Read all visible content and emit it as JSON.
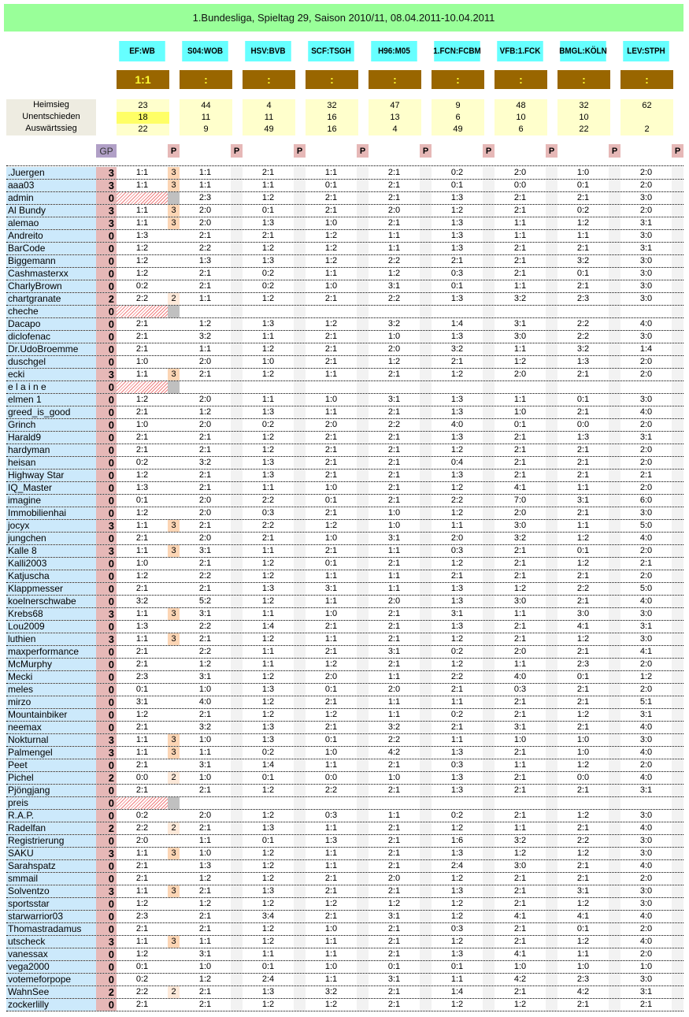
{
  "title": "1.Bundesliga, Spieltag 29, Saison 2010/11, 08.04.2011-10.04.2011",
  "matches": [
    "EF:WB",
    "S04:WOB",
    "HSV:BVB",
    "SCF:TSGH",
    "H96:M05",
    "1.FCN:FCBM",
    "VFB:1.FCK",
    "BMGL:KÖLN",
    "LEV:STPH"
  ],
  "results": [
    "1:1",
    ":",
    ":",
    ":",
    ":",
    ":",
    ":",
    ":",
    ":"
  ],
  "stats": {
    "labels": [
      "Heimsieg",
      "Unentschieden",
      "Auswärtssieg"
    ],
    "heimsieg": [
      "23",
      "44",
      "4",
      "32",
      "47",
      "9",
      "48",
      "32",
      "62"
    ],
    "unentschieden": [
      "18",
      "11",
      "11",
      "16",
      "13",
      "6",
      "10",
      "10",
      ""
    ],
    "auswaertssieg": [
      "22",
      "9",
      "49",
      "16",
      "4",
      "49",
      "6",
      "22",
      "2"
    ]
  },
  "gp_label": "GP",
  "p_label": "P",
  "colors": {
    "title": "#99ff99",
    "match": "#66ffff",
    "score": "#996600",
    "score_text": "#ffff33",
    "stat": "#ffffcc",
    "highlight": "#ffff66",
    "name": "#cce9fb",
    "gp": "#e6b8b7",
    "p3": "#fcd5b4",
    "p2": "#fde9d9"
  },
  "rows": [
    {
      "name": ".Juergen",
      "gp": "3",
      "p": "3",
      "tips": [
        "1:1",
        "1:1",
        "2:1",
        "1:1",
        "2:1",
        "0:2",
        "2:0",
        "1:0",
        "2:0"
      ]
    },
    {
      "name": "aaa03",
      "gp": "3",
      "p": "3",
      "tips": [
        "1:1",
        "1:1",
        "1:1",
        "0:1",
        "2:1",
        "0:1",
        "0:0",
        "0:1",
        "2:0"
      ]
    },
    {
      "name": "admin",
      "gp": "0",
      "p": "",
      "missing": true,
      "tips": [
        "",
        "2:3",
        "1:2",
        "2:1",
        "2:1",
        "1:3",
        "2:1",
        "2:1",
        "3:0"
      ]
    },
    {
      "name": "Al Bundy",
      "gp": "3",
      "p": "3",
      "tips": [
        "1:1",
        "2:0",
        "0:1",
        "2:1",
        "2:0",
        "1:2",
        "2:1",
        "0:2",
        "2:0"
      ]
    },
    {
      "name": "alemao",
      "gp": "3",
      "p": "3",
      "tips": [
        "1:1",
        "2:0",
        "1:3",
        "1:0",
        "2:1",
        "1:3",
        "1:1",
        "1:2",
        "3:1"
      ]
    },
    {
      "name": "Andreito",
      "gp": "0",
      "p": "",
      "tips": [
        "1:3",
        "2:1",
        "2:1",
        "1:2",
        "1:1",
        "1:3",
        "1:1",
        "1:1",
        "3:0"
      ]
    },
    {
      "name": "BarCode",
      "gp": "0",
      "p": "",
      "tips": [
        "1:2",
        "2:2",
        "1:2",
        "1:2",
        "1:1",
        "1:3",
        "2:1",
        "2:1",
        "3:1"
      ]
    },
    {
      "name": "Biggemann",
      "gp": "0",
      "p": "",
      "tips": [
        "1:2",
        "1:3",
        "1:3",
        "1:2",
        "2:2",
        "2:1",
        "2:1",
        "3:2",
        "3:0"
      ]
    },
    {
      "name": "Cashmasterxx",
      "gp": "0",
      "p": "",
      "tips": [
        "1:2",
        "2:1",
        "0:2",
        "1:1",
        "1:2",
        "0:3",
        "2:1",
        "0:1",
        "3:0"
      ]
    },
    {
      "name": "CharlyBrown",
      "gp": "0",
      "p": "",
      "tips": [
        "0:2",
        "2:1",
        "0:2",
        "1:0",
        "3:1",
        "0:1",
        "1:1",
        "2:1",
        "3:0"
      ]
    },
    {
      "name": "chartgranate",
      "gp": "2",
      "p": "2",
      "tips": [
        "2:2",
        "1:1",
        "1:2",
        "2:1",
        "2:2",
        "1:3",
        "3:2",
        "2:3",
        "3:0"
      ]
    },
    {
      "name": "cheche",
      "gp": "0",
      "p": "",
      "missing": true,
      "tips": [
        "",
        "",
        "",
        "",
        "",
        "",
        "",
        "",
        ""
      ]
    },
    {
      "name": "Dacapo",
      "gp": "0",
      "p": "",
      "tips": [
        "2:1",
        "1:2",
        "1:3",
        "1:2",
        "3:2",
        "1:4",
        "3:1",
        "2:2",
        "4:0"
      ]
    },
    {
      "name": "diclofenac",
      "gp": "0",
      "p": "",
      "tips": [
        "2:1",
        "3:2",
        "1:1",
        "2:1",
        "1:0",
        "1:3",
        "3:0",
        "2:2",
        "3:0"
      ]
    },
    {
      "name": "Dr.UdoBroemme",
      "gp": "0",
      "p": "",
      "tips": [
        "2:1",
        "1:1",
        "1:2",
        "2:1",
        "2:0",
        "3:2",
        "1:1",
        "3:2",
        "1:4"
      ]
    },
    {
      "name": "duschgel",
      "gp": "0",
      "p": "",
      "tips": [
        "1:0",
        "2:0",
        "1:0",
        "2:1",
        "1:2",
        "2:1",
        "1:2",
        "1:3",
        "2:0"
      ]
    },
    {
      "name": "ecki",
      "gp": "3",
      "p": "3",
      "tips": [
        "1:1",
        "2:1",
        "1:2",
        "1:1",
        "2:1",
        "1:2",
        "2:0",
        "2:1",
        "2:0"
      ]
    },
    {
      "name": "e l a i n e",
      "gp": "0",
      "p": "",
      "missing": true,
      "tips": [
        "",
        "",
        "",
        "",
        "",
        "",
        "",
        "",
        ""
      ]
    },
    {
      "name": "elmen 1",
      "gp": "0",
      "p": "",
      "tips": [
        "1:2",
        "2:0",
        "1:1",
        "1:0",
        "3:1",
        "1:3",
        "1:1",
        "0:1",
        "3:0"
      ]
    },
    {
      "name": "greed_is_good",
      "gp": "0",
      "p": "",
      "tips": [
        "2:1",
        "1:2",
        "1:3",
        "1:1",
        "2:1",
        "1:3",
        "1:0",
        "2:1",
        "4:0"
      ]
    },
    {
      "name": "Grinch",
      "gp": "0",
      "p": "",
      "tips": [
        "1:0",
        "2:0",
        "0:2",
        "2:0",
        "2:2",
        "4:0",
        "0:1",
        "0:0",
        "2:0"
      ]
    },
    {
      "name": "Harald9",
      "gp": "0",
      "p": "",
      "tips": [
        "2:1",
        "2:1",
        "1:2",
        "2:1",
        "2:1",
        "1:3",
        "2:1",
        "1:3",
        "3:1"
      ]
    },
    {
      "name": "hardyman",
      "gp": "0",
      "p": "",
      "tips": [
        "2:1",
        "2:1",
        "1:2",
        "2:1",
        "2:1",
        "1:2",
        "2:1",
        "2:1",
        "2:0"
      ]
    },
    {
      "name": "heisan",
      "gp": "0",
      "p": "",
      "tips": [
        "0:2",
        "3:2",
        "1:3",
        "2:1",
        "2:1",
        "0:4",
        "2:1",
        "2:1",
        "2:0"
      ]
    },
    {
      "name": "Highway Star",
      "gp": "0",
      "p": "",
      "tips": [
        "1:2",
        "2:1",
        "1:3",
        "2:1",
        "2:1",
        "1:3",
        "2:1",
        "2:1",
        "2:1"
      ]
    },
    {
      "name": "IQ_Master",
      "gp": "0",
      "p": "",
      "tips": [
        "1:3",
        "2:1",
        "1:1",
        "1:0",
        "2:1",
        "1:2",
        "4:1",
        "1:1",
        "2:0"
      ]
    },
    {
      "name": "imagine",
      "gp": "0",
      "p": "",
      "tips": [
        "0:1",
        "2:0",
        "2:2",
        "0:1",
        "2:1",
        "2:2",
        "7:0",
        "3:1",
        "6:0"
      ]
    },
    {
      "name": "Immobilienhai",
      "gp": "0",
      "p": "",
      "tips": [
        "1:2",
        "2:0",
        "0:3",
        "2:1",
        "1:0",
        "1:2",
        "2:0",
        "2:1",
        "3:0"
      ]
    },
    {
      "name": "jocyx",
      "gp": "3",
      "p": "3",
      "tips": [
        "1:1",
        "2:1",
        "2:2",
        "1:2",
        "1:0",
        "1:1",
        "3:0",
        "1:1",
        "5:0"
      ]
    },
    {
      "name": "jungchen",
      "gp": "0",
      "p": "",
      "tips": [
        "2:1",
        "2:0",
        "2:1",
        "1:0",
        "3:1",
        "2:0",
        "3:2",
        "1:2",
        "4:0"
      ]
    },
    {
      "name": "Kalle 8",
      "gp": "3",
      "p": "3",
      "tips": [
        "1:1",
        "3:1",
        "1:1",
        "2:1",
        "1:1",
        "0:3",
        "2:1",
        "0:1",
        "2:0"
      ]
    },
    {
      "name": "Kalli2003",
      "gp": "0",
      "p": "",
      "tips": [
        "1:0",
        "2:1",
        "1:2",
        "0:1",
        "2:1",
        "1:2",
        "2:1",
        "1:2",
        "2:1"
      ]
    },
    {
      "name": "Katjuscha",
      "gp": "0",
      "p": "",
      "tips": [
        "1:2",
        "2:2",
        "1:2",
        "1:1",
        "1:1",
        "2:1",
        "2:1",
        "2:1",
        "2:0"
      ]
    },
    {
      "name": "Klappmesser",
      "gp": "0",
      "p": "",
      "tips": [
        "2:1",
        "2:1",
        "1:3",
        "3:1",
        "1:1",
        "1:3",
        "1:2",
        "2:2",
        "5:0"
      ]
    },
    {
      "name": "koelnerschwabe",
      "gp": "0",
      "p": "",
      "tips": [
        "3:2",
        "5:2",
        "1:2",
        "1:1",
        "2:0",
        "1:3",
        "3:0",
        "2:1",
        "4:0"
      ]
    },
    {
      "name": "Krebs68",
      "gp": "3",
      "p": "3",
      "tips": [
        "1:1",
        "3:1",
        "1:1",
        "1:0",
        "2:1",
        "3:1",
        "1:1",
        "3:0",
        "3:0"
      ]
    },
    {
      "name": "Lou2009",
      "gp": "0",
      "p": "",
      "tips": [
        "1:3",
        "2:2",
        "1:4",
        "2:1",
        "2:1",
        "1:3",
        "2:1",
        "4:1",
        "3:1"
      ]
    },
    {
      "name": "luthien",
      "gp": "3",
      "p": "3",
      "tips": [
        "1:1",
        "2:1",
        "1:2",
        "1:1",
        "2:1",
        "1:2",
        "2:1",
        "1:2",
        "3:0"
      ]
    },
    {
      "name": "maxperformance",
      "gp": "0",
      "p": "",
      "tips": [
        "2:1",
        "2:2",
        "1:1",
        "2:1",
        "3:1",
        "0:2",
        "2:0",
        "2:1",
        "4:1"
      ]
    },
    {
      "name": "McMurphy",
      "gp": "0",
      "p": "",
      "tips": [
        "2:1",
        "1:2",
        "1:1",
        "1:2",
        "2:1",
        "1:2",
        "1:1",
        "2:3",
        "2:0"
      ]
    },
    {
      "name": "Mecki",
      "gp": "0",
      "p": "",
      "tips": [
        "2:3",
        "3:1",
        "1:2",
        "2:0",
        "1:1",
        "2:2",
        "4:0",
        "0:1",
        "1:2"
      ]
    },
    {
      "name": "meles",
      "gp": "0",
      "p": "",
      "tips": [
        "0:1",
        "1:0",
        "1:3",
        "0:1",
        "2:0",
        "2:1",
        "0:3",
        "2:1",
        "2:0"
      ]
    },
    {
      "name": "mirzo",
      "gp": "0",
      "p": "",
      "tips": [
        "3:1",
        "4:0",
        "1:2",
        "2:1",
        "1:1",
        "1:1",
        "2:1",
        "2:1",
        "5:1"
      ]
    },
    {
      "name": "Mountainbiker",
      "gp": "0",
      "p": "",
      "tips": [
        "1:2",
        "2:1",
        "1:2",
        "1:2",
        "1:1",
        "0:2",
        "2:1",
        "1:2",
        "3:1"
      ]
    },
    {
      "name": "neemax",
      "gp": "0",
      "p": "",
      "tips": [
        "2:1",
        "3:2",
        "1:3",
        "2:1",
        "3:2",
        "2:1",
        "3:1",
        "2:1",
        "4:0"
      ]
    },
    {
      "name": "Nokturnal",
      "gp": "3",
      "p": "3",
      "tips": [
        "1:1",
        "1:0",
        "1:3",
        "0:1",
        "2:2",
        "1:1",
        "1:0",
        "1:0",
        "3:0"
      ]
    },
    {
      "name": "Palmengel",
      "gp": "3",
      "p": "3",
      "tips": [
        "1:1",
        "1:1",
        "0:2",
        "1:0",
        "4:2",
        "1:3",
        "2:1",
        "1:0",
        "4:0"
      ]
    },
    {
      "name": "Peet",
      "gp": "0",
      "p": "",
      "tips": [
        "2:1",
        "3:1",
        "1:4",
        "1:1",
        "2:1",
        "0:3",
        "1:1",
        "1:2",
        "2:0"
      ]
    },
    {
      "name": "Pichel",
      "gp": "2",
      "p": "2",
      "tips": [
        "0:0",
        "1:0",
        "0:1",
        "0:0",
        "1:0",
        "1:3",
        "2:1",
        "0:0",
        "4:0"
      ]
    },
    {
      "name": "Pjöngjang",
      "gp": "0",
      "p": "",
      "tips": [
        "2:1",
        "2:1",
        "1:2",
        "2:2",
        "2:1",
        "1:3",
        "2:1",
        "2:1",
        "3:1"
      ]
    },
    {
      "name": "preis",
      "gp": "0",
      "p": "",
      "missing": true,
      "tips": [
        "",
        "",
        "",
        "",
        "",
        "",
        "",
        "",
        ""
      ]
    },
    {
      "name": "R.A.P.",
      "gp": "0",
      "p": "",
      "tips": [
        "0:2",
        "2:0",
        "1:2",
        "0:3",
        "1:1",
        "0:2",
        "2:1",
        "1:2",
        "3:0"
      ]
    },
    {
      "name": "Radelfan",
      "gp": "2",
      "p": "2",
      "tips": [
        "2:2",
        "2:1",
        "1:3",
        "1:1",
        "2:1",
        "1:2",
        "1:1",
        "2:1",
        "4:0"
      ]
    },
    {
      "name": "Registrierung",
      "gp": "0",
      "p": "",
      "tips": [
        "2:0",
        "1:1",
        "0:1",
        "1:3",
        "2:1",
        "1:6",
        "3:2",
        "2:2",
        "3:0"
      ]
    },
    {
      "name": "SAKU",
      "gp": "3",
      "p": "3",
      "tips": [
        "1:1",
        "1:0",
        "1:2",
        "1:1",
        "2:1",
        "1:3",
        "1:2",
        "1:2",
        "3:0"
      ]
    },
    {
      "name": "Sarahspatz",
      "gp": "0",
      "p": "",
      "tips": [
        "2:1",
        "1:3",
        "1:2",
        "1:1",
        "2:1",
        "2:4",
        "3:0",
        "2:1",
        "4:0"
      ]
    },
    {
      "name": "smmail",
      "gp": "0",
      "p": "",
      "tips": [
        "2:1",
        "1:2",
        "1:2",
        "2:1",
        "2:0",
        "1:2",
        "2:1",
        "2:1",
        "2:0"
      ]
    },
    {
      "name": "Solventzo",
      "gp": "3",
      "p": "3",
      "tips": [
        "1:1",
        "2:1",
        "1:3",
        "2:1",
        "2:1",
        "1:3",
        "2:1",
        "3:1",
        "3:0"
      ]
    },
    {
      "name": "sportsstar",
      "gp": "0",
      "p": "",
      "tips": [
        "1:2",
        "1:2",
        "1:2",
        "1:2",
        "1:2",
        "1:2",
        "2:1",
        "1:2",
        "3:0"
      ]
    },
    {
      "name": "starwarrior03",
      "gp": "0",
      "p": "",
      "tips": [
        "2:3",
        "2:1",
        "3:4",
        "2:1",
        "3:1",
        "1:2",
        "4:1",
        "4:1",
        "4:0"
      ]
    },
    {
      "name": "Thomastradamus",
      "gp": "0",
      "p": "",
      "tips": [
        "2:1",
        "2:1",
        "1:2",
        "1:0",
        "2:1",
        "0:3",
        "2:1",
        "0:1",
        "2:0"
      ]
    },
    {
      "name": "utscheck",
      "gp": "3",
      "p": "3",
      "tips": [
        "1:1",
        "1:1",
        "1:2",
        "1:1",
        "2:1",
        "1:2",
        "2:1",
        "1:2",
        "4:0"
      ]
    },
    {
      "name": "vanessax",
      "gp": "0",
      "p": "",
      "tips": [
        "1:2",
        "3:1",
        "1:1",
        "1:1",
        "2:1",
        "1:3",
        "4:1",
        "1:1",
        "2:0"
      ]
    },
    {
      "name": "vega2000",
      "gp": "0",
      "p": "",
      "tips": [
        "0:1",
        "1:0",
        "0:1",
        "1:0",
        "0:1",
        "0:1",
        "1:0",
        "1:0",
        "1:0"
      ]
    },
    {
      "name": "votemeforpope",
      "gp": "0",
      "p": "",
      "tips": [
        "0:2",
        "1:2",
        "2:4",
        "1:1",
        "3:1",
        "1:1",
        "4:2",
        "2:3",
        "3:0"
      ]
    },
    {
      "name": "WahnSee",
      "gp": "2",
      "p": "2",
      "tips": [
        "2:2",
        "2:1",
        "1:3",
        "3:2",
        "2:1",
        "1:4",
        "2:1",
        "4:2",
        "3:1"
      ]
    },
    {
      "name": "zockerlilly",
      "gp": "0",
      "p": "",
      "tips": [
        "2:1",
        "2:1",
        "1:2",
        "1:2",
        "2:1",
        "1:2",
        "1:2",
        "2:1",
        "2:1"
      ]
    }
  ]
}
